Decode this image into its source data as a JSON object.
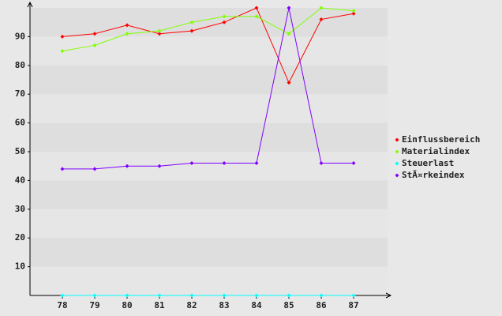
{
  "chart_data": {
    "type": "line",
    "categories": [
      "78",
      "79",
      "80",
      "81",
      "82",
      "83",
      "84",
      "85",
      "86",
      "87"
    ],
    "series": [
      {
        "name": "Einflussbereich",
        "color": "#ff0000",
        "values": [
          90,
          91,
          94,
          91,
          92,
          95,
          100,
          74,
          96,
          98
        ]
      },
      {
        "name": "Materialindex",
        "color": "#80ff00",
        "values": [
          85,
          87,
          91,
          92,
          95,
          97,
          97,
          91,
          100,
          99
        ]
      },
      {
        "name": "Steuerlast",
        "color": "#00ffff",
        "values": [
          0,
          0,
          0,
          0,
          0,
          0,
          0,
          0,
          0,
          0
        ]
      },
      {
        "name": "StÃ¤rkeindex",
        "color": "#8000ff",
        "values": [
          44,
          44,
          45,
          45,
          46,
          46,
          46,
          100,
          46,
          46
        ]
      }
    ],
    "ylim": [
      0,
      100
    ],
    "yticks": [
      10,
      20,
      30,
      40,
      50,
      60,
      70,
      80,
      90
    ],
    "grid": true,
    "legend": "right"
  }
}
